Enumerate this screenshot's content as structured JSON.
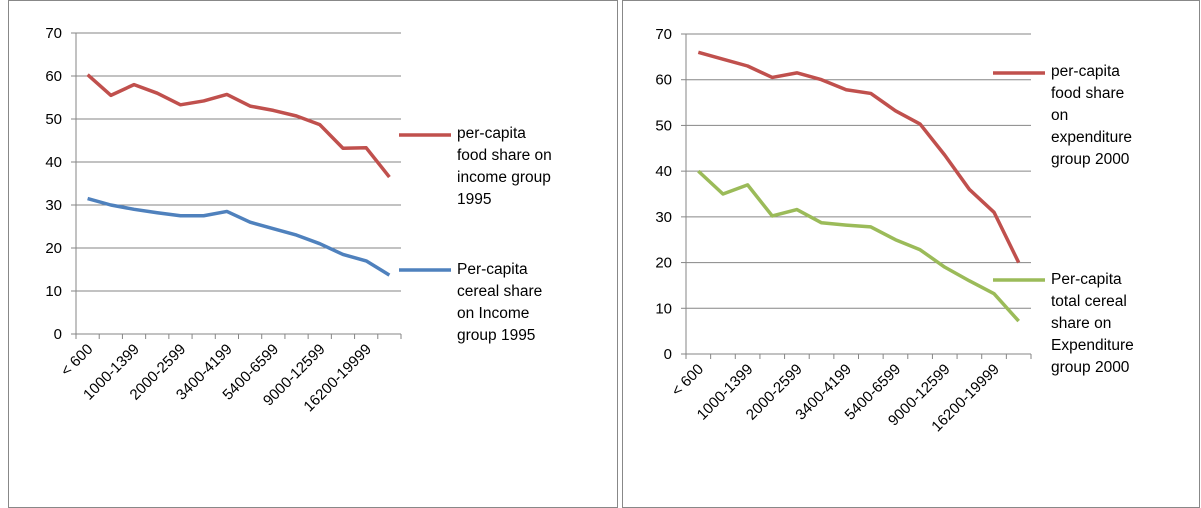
{
  "chart_data": [
    {
      "type": "line",
      "categories": [
        "< 600",
        null,
        "1000-1399",
        null,
        "2000-2599",
        null,
        "3400-4199",
        null,
        "5400-6599",
        null,
        "9000-12599",
        null,
        "16200-19999",
        null
      ],
      "series": [
        {
          "name": "per-capita food share on income group 1995",
          "color": "#c0504d",
          "values": [
            60.3,
            55.5,
            58,
            56,
            53.3,
            54.2,
            55.7,
            53,
            52,
            50.7,
            48.7,
            43.2,
            43.3,
            36.5
          ]
        },
        {
          "name": "Per-capita cereal share on Income group  1995",
          "color": "#4f81bd",
          "values": [
            31.5,
            30,
            29,
            28.2,
            27.5,
            27.5,
            28.5,
            26,
            24.5,
            23,
            21,
            18.5,
            17,
            13.7
          ]
        }
      ],
      "ylim": [
        0,
        70
      ],
      "yticks": [
        0,
        10,
        20,
        30,
        40,
        50,
        60,
        70
      ],
      "grid": true,
      "legend": "right"
    },
    {
      "type": "line",
      "categories": [
        "< 600",
        null,
        "1000-1399",
        null,
        "2000-2599",
        null,
        "3400-4199",
        null,
        "5400-6599",
        null,
        "9000-12599",
        null,
        "16200-19999",
        null
      ],
      "series": [
        {
          "name": "per-capita food share on expenditure group 2000",
          "color": "#c0504d",
          "values": [
            66,
            64.5,
            63,
            60.5,
            61.5,
            60,
            57.8,
            57,
            53.2,
            50.3,
            43.5,
            36,
            31,
            20
          ]
        },
        {
          "name": "Per-capita total cereal share  on Expenditure  group 2000",
          "color": "#9bbb59",
          "values": [
            40,
            35,
            37,
            30.2,
            31.6,
            28.7,
            28.2,
            27.8,
            25,
            22.8,
            19,
            16,
            13.2,
            7.2
          ]
        }
      ],
      "ylim": [
        0,
        70
      ],
      "yticks": [
        0,
        10,
        20,
        30,
        40,
        50,
        60,
        70
      ],
      "grid": true,
      "legend": "right"
    }
  ]
}
